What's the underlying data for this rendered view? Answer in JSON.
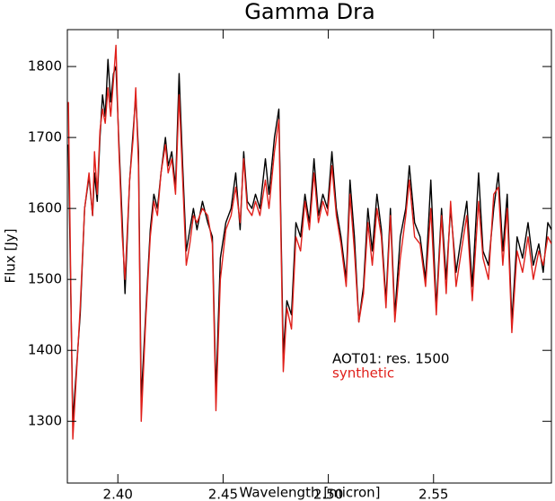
{
  "chart_data": {
    "type": "line",
    "title": "Gamma Dra",
    "x_label": "Wavelength [micron]",
    "y_label": "Flux [Jy]",
    "x": [
      2.3765,
      2.3786,
      2.3821,
      2.3842,
      2.3863,
      2.388,
      2.3889,
      2.3902,
      2.3915,
      2.3927,
      2.394,
      2.3953,
      2.3966,
      2.3979,
      2.3991,
      2.4004,
      2.4021,
      2.4034,
      2.4056,
      2.4073,
      2.4085,
      2.4098,
      2.4111,
      2.4132,
      2.4154,
      2.4171,
      2.4188,
      2.4205,
      2.4226,
      2.4239,
      2.4256,
      2.4274,
      2.4291,
      2.4308,
      2.4325,
      2.4342,
      2.4359,
      2.4376,
      2.4402,
      2.4427,
      2.4449,
      2.4466,
      2.4487,
      2.4513,
      2.4538,
      2.456,
      2.4581,
      2.4598,
      2.4615,
      2.4637,
      2.4654,
      2.4675,
      2.4701,
      2.4718,
      2.4744,
      2.4765,
      2.4786,
      2.4803,
      2.4825,
      2.4846,
      2.4868,
      2.4889,
      2.491,
      2.4932,
      2.4953,
      2.4974,
      2.4996,
      2.5017,
      2.5038,
      2.506,
      2.5085,
      2.5103,
      2.5124,
      2.5145,
      2.5167,
      2.5188,
      2.5209,
      2.5231,
      2.5252,
      2.5274,
      2.5295,
      2.5316,
      2.5342,
      2.5368,
      2.5385,
      2.541,
      2.5436,
      2.5462,
      2.5487,
      2.5513,
      2.5538,
      2.556,
      2.5581,
      2.5607,
      2.5632,
      2.5658,
      2.5684,
      2.5714,
      2.5735,
      2.5761,
      2.5786,
      2.5808,
      2.5829,
      2.585,
      2.5872,
      2.5897,
      2.5923,
      2.5949,
      2.5974,
      2.6,
      2.6021,
      2.6043,
      2.606
    ],
    "series": [
      {
        "name": "AOT01: res. 1500",
        "color": "#000000",
        "values": [
          1690,
          1300,
          1450,
          1600,
          1645,
          1590,
          1650,
          1610,
          1700,
          1760,
          1730,
          1810,
          1750,
          1790,
          1800,
          1700,
          1580,
          1480,
          1640,
          1710,
          1760,
          1680,
          1330,
          1450,
          1570,
          1620,
          1600,
          1650,
          1700,
          1660,
          1680,
          1630,
          1790,
          1660,
          1540,
          1570,
          1600,
          1570,
          1610,
          1580,
          1560,
          1340,
          1530,
          1580,
          1600,
          1650,
          1570,
          1680,
          1610,
          1600,
          1620,
          1600,
          1670,
          1620,
          1700,
          1740,
          1395,
          1470,
          1450,
          1580,
          1560,
          1620,
          1580,
          1670,
          1590,
          1620,
          1600,
          1680,
          1600,
          1560,
          1500,
          1640,
          1560,
          1440,
          1490,
          1600,
          1540,
          1620,
          1570,
          1470,
          1600,
          1450,
          1560,
          1600,
          1660,
          1580,
          1560,
          1500,
          1640,
          1460,
          1600,
          1500,
          1600,
          1510,
          1560,
          1610,
          1490,
          1650,
          1540,
          1520,
          1600,
          1650,
          1540,
          1620,
          1440,
          1560,
          1530,
          1580,
          1520,
          1550,
          1510,
          1580,
          1570
        ]
      },
      {
        "name": "synthetic",
        "color": "#e0201b",
        "values": [
          1750,
          1275,
          1460,
          1600,
          1650,
          1590,
          1680,
          1620,
          1710,
          1740,
          1720,
          1770,
          1730,
          1780,
          1830,
          1690,
          1560,
          1500,
          1640,
          1700,
          1770,
          1660,
          1300,
          1440,
          1560,
          1610,
          1590,
          1650,
          1690,
          1650,
          1670,
          1620,
          1760,
          1640,
          1520,
          1550,
          1590,
          1580,
          1600,
          1590,
          1550,
          1315,
          1500,
          1570,
          1590,
          1630,
          1580,
          1670,
          1600,
          1590,
          1610,
          1590,
          1640,
          1600,
          1680,
          1725,
          1370,
          1460,
          1430,
          1560,
          1540,
          1610,
          1570,
          1650,
          1580,
          1610,
          1590,
          1660,
          1590,
          1550,
          1490,
          1620,
          1540,
          1440,
          1480,
          1580,
          1520,
          1600,
          1560,
          1460,
          1590,
          1440,
          1530,
          1590,
          1640,
          1560,
          1550,
          1490,
          1600,
          1450,
          1590,
          1480,
          1610,
          1490,
          1540,
          1590,
          1470,
          1610,
          1530,
          1500,
          1620,
          1630,
          1520,
          1600,
          1425,
          1540,
          1510,
          1560,
          1500,
          1540,
          1520,
          1560,
          1550
        ]
      }
    ],
    "xlim": [
      2.376,
      2.606
    ],
    "ylim": [
      1213,
      1852
    ],
    "xticks": [
      {
        "value": 2.4,
        "label": "2.40"
      },
      {
        "value": 2.45,
        "label": "2.45"
      },
      {
        "value": 2.5,
        "label": "2.50"
      },
      {
        "value": 2.55,
        "label": "2.55"
      }
    ],
    "yticks": [
      1300,
      1400,
      1500,
      1600,
      1700,
      1800
    ],
    "grid": false,
    "legend": "lower right"
  }
}
